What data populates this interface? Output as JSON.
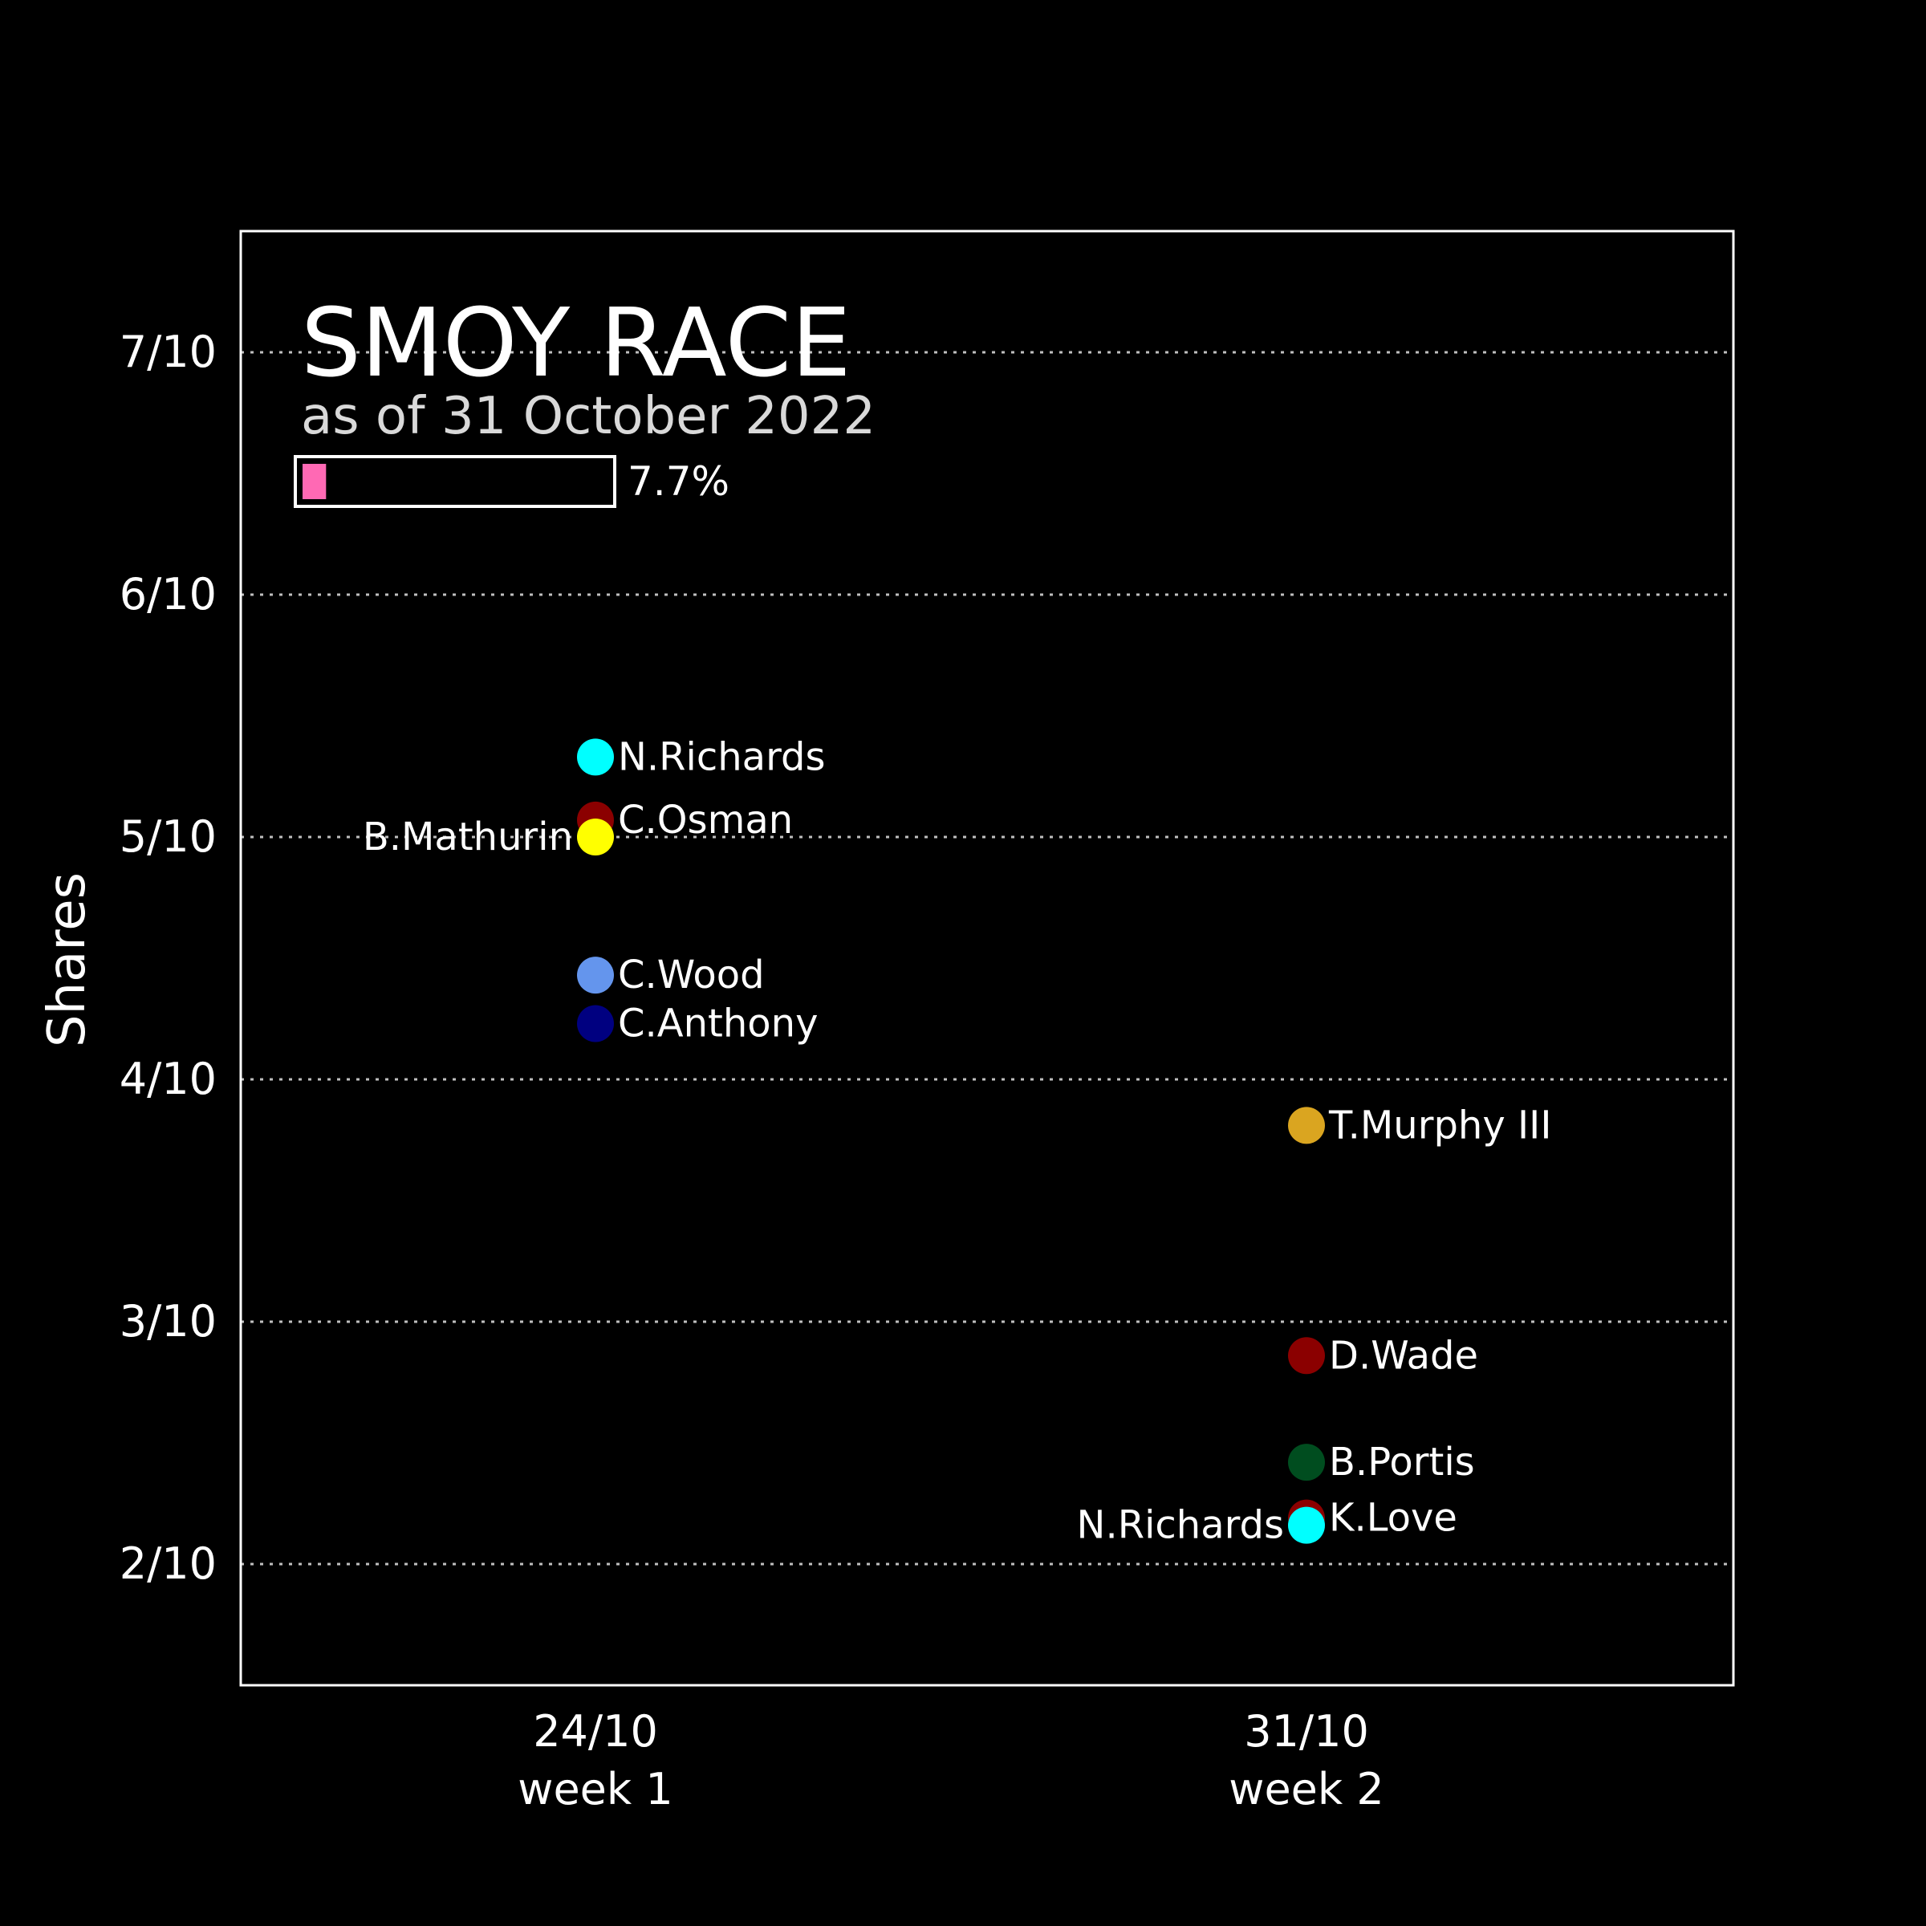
{
  "chart_data": {
    "type": "scatter",
    "title": "SMOY RACE",
    "subtitle": "as of 31 October 2022",
    "progress": {
      "value": 0.077,
      "label": "7.7%",
      "color": "#ff69b4"
    },
    "ylabel": "Shares",
    "xlabel": "",
    "ylim": [
      0.15,
      0.75
    ],
    "grid": true,
    "y_ticks": [
      {
        "value": 0.2,
        "label": "2/10"
      },
      {
        "value": 0.3,
        "label": "3/10"
      },
      {
        "value": 0.4,
        "label": "4/10"
      },
      {
        "value": 0.5,
        "label": "5/10"
      },
      {
        "value": 0.6,
        "label": "6/10"
      },
      {
        "value": 0.7,
        "label": "7/10"
      }
    ],
    "categories": [
      {
        "date": "24/10",
        "week": "week 1"
      },
      {
        "date": "31/10",
        "week": "week 2"
      }
    ],
    "points": [
      {
        "category": 0,
        "name": "N.Richards",
        "value": 0.533,
        "color": "#00ffff",
        "label_side": "right"
      },
      {
        "category": 0,
        "name": "C.Osman",
        "value": 0.507,
        "color": "#8b0000",
        "label_side": "right"
      },
      {
        "category": 0,
        "name": "B.Mathurin",
        "value": 0.5,
        "color": "#ffff00",
        "label_side": "left"
      },
      {
        "category": 0,
        "name": "C.Wood",
        "value": 0.443,
        "color": "#6495ed",
        "label_side": "right"
      },
      {
        "category": 0,
        "name": "C.Anthony",
        "value": 0.423,
        "color": "#000080",
        "label_side": "right"
      },
      {
        "category": 1,
        "name": "T.Murphy III",
        "value": 0.381,
        "color": "#daa520",
        "label_side": "right"
      },
      {
        "category": 1,
        "name": "D.Wade",
        "value": 0.286,
        "color": "#8b0000",
        "label_side": "right"
      },
      {
        "category": 1,
        "name": "B.Portis",
        "value": 0.242,
        "color": "#004d1f",
        "label_side": "right"
      },
      {
        "category": 1,
        "name": "K.Love",
        "value": 0.219,
        "color": "#8b0000",
        "label_side": "right"
      },
      {
        "category": 1,
        "name": "N.Richards",
        "value": 0.216,
        "color": "#00ffff",
        "label_side": "left"
      }
    ]
  }
}
